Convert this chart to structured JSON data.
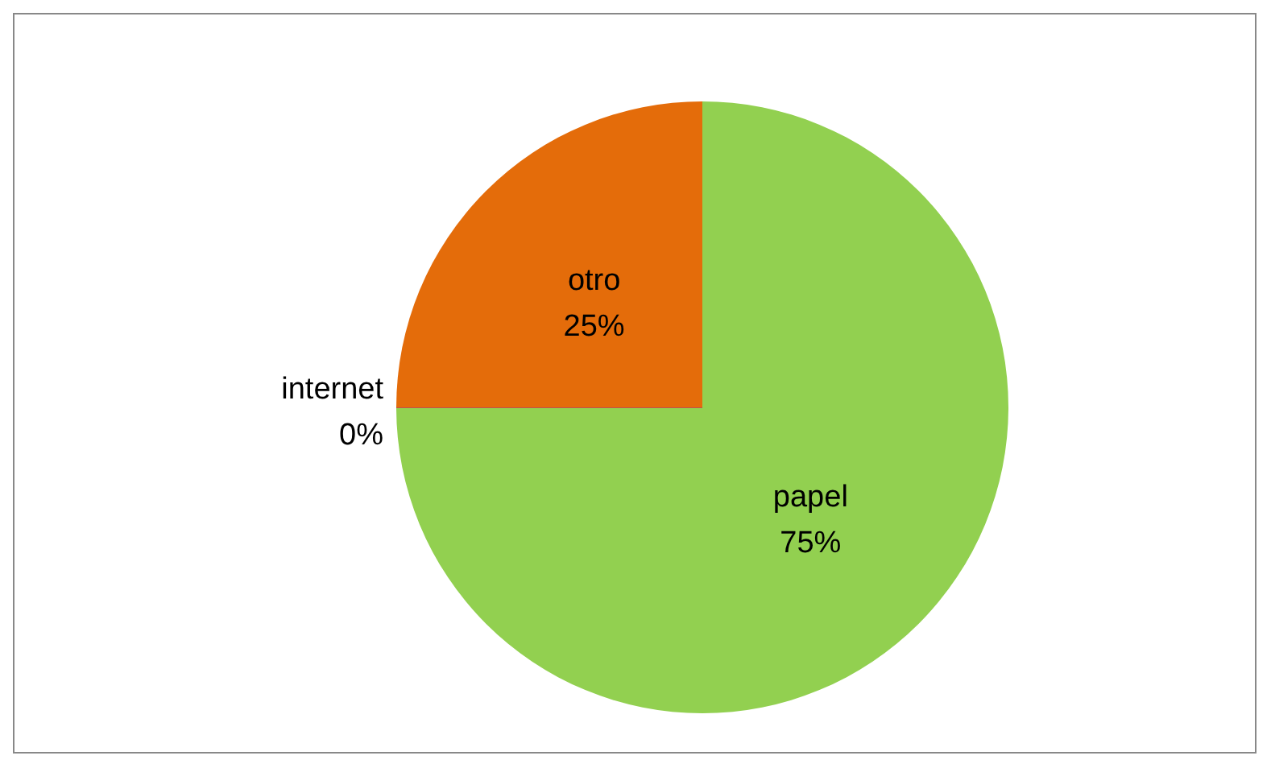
{
  "chart_data": {
    "type": "pie",
    "categories": [
      "papel",
      "internet",
      "otro"
    ],
    "values": [
      75,
      0,
      25
    ],
    "colors": [
      "#92d050",
      "#c0504d",
      "#e46c0a"
    ],
    "value_labels": [
      "75%",
      "0%",
      "25%"
    ],
    "legend": false
  }
}
